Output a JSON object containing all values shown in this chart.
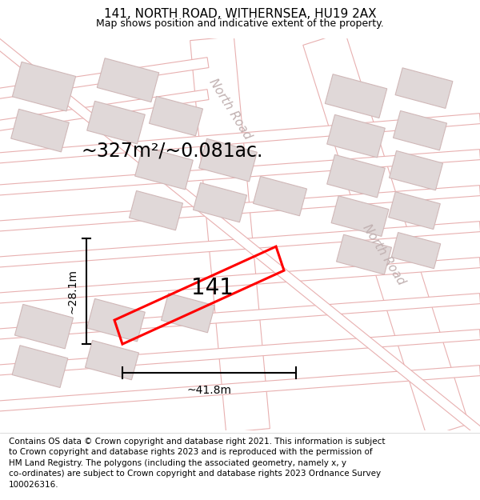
{
  "title": "141, NORTH ROAD, WITHERNSEA, HU19 2AX",
  "subtitle": "Map shows position and indicative extent of the property.",
  "area_label": "~327m²/~0.081ac.",
  "plot_number": "141",
  "width_label": "~41.8m",
  "height_label": "~28.1m",
  "footer_text": "Contains OS data © Crown copyright and database right 2021. This information is subject\nto Crown copyright and database rights 2023 and is reproduced with the permission of\nHM Land Registry. The polygons (including the associated geometry, namely x, y\nco-ordinates) are subject to Crown copyright and database rights 2023 Ordnance Survey\n100026316.",
  "map_bg": "#ffffff",
  "road_fill": "#f9f0f0",
  "road_edge": "#e8b0b0",
  "plot_color": "#ff0000",
  "building_fill": "#e0d8d8",
  "building_edge": "#d0b8b8",
  "road_label_color": "#c0b0b0",
  "title_fontsize": 11,
  "subtitle_fontsize": 9,
  "area_fontsize": 17,
  "plot_num_fontsize": 20,
  "dim_fontsize": 10,
  "footer_fontsize": 7.5,
  "road_label_fontsize": 11
}
